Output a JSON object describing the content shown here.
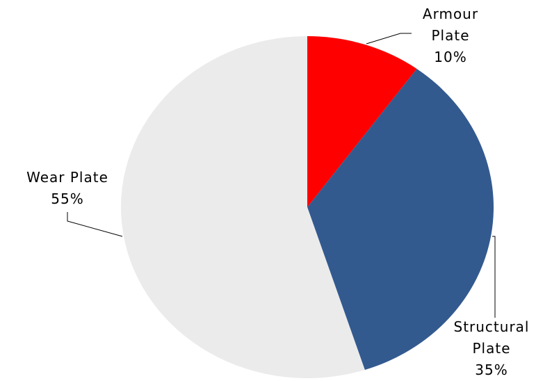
{
  "chart_data": {
    "type": "pie",
    "categories": [
      "Armour Plate",
      "Structural Plate",
      "Wear Plate"
    ],
    "values": [
      10,
      35,
      55
    ],
    "value_labels": [
      "10%",
      "35%",
      "55%"
    ],
    "colors": [
      "#ff0000",
      "#335a8f",
      "#ebebeb"
    ]
  }
}
